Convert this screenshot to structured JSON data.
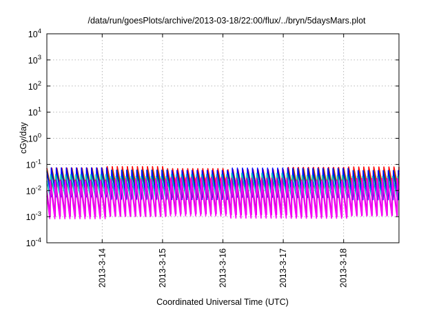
{
  "chart_data": {
    "type": "line",
    "title": "/data/run/goesPlots/archive/2013-03-18/22:00/flux/../bryn/5daysMars.plot",
    "xlabel": "Coordinated Universal Time (UTC)",
    "ylabel": "cGy/day",
    "yscale": "log",
    "ylim": [
      0.0001,
      10000
    ],
    "y_ticks": [
      {
        "value": 0.0001,
        "mant": "10",
        "exp": "-4"
      },
      {
        "value": 0.001,
        "mant": "10",
        "exp": "-3"
      },
      {
        "value": 0.01,
        "mant": "10",
        "exp": "-2"
      },
      {
        "value": 0.1,
        "mant": "10",
        "exp": "-1"
      },
      {
        "value": 1,
        "mant": "10",
        "exp": "0"
      },
      {
        "value": 10,
        "mant": "10",
        "exp": "1"
      },
      {
        "value": 100,
        "mant": "10",
        "exp": "2"
      },
      {
        "value": 1000,
        "mant": "10",
        "exp": "3"
      },
      {
        "value": 10000,
        "mant": "10",
        "exp": "4"
      }
    ],
    "xlim": [
      "2013-03-13 02:00",
      "2013-03-18 22:00"
    ],
    "x_ticks": [
      {
        "value": "2013-03-14 00:00",
        "label": "2013-3-14"
      },
      {
        "value": "2013-03-15 00:00",
        "label": "2013-3-15"
      },
      {
        "value": "2013-03-16 00:00",
        "label": "2013-3-16"
      },
      {
        "value": "2013-03-17 00:00",
        "label": "2013-3-17"
      },
      {
        "value": "2013-03-18 00:00",
        "label": "2013-3-18"
      }
    ],
    "grid": true,
    "sawtooth_period_hours": 2,
    "series": [
      {
        "color": "#ff0000",
        "peak": 0.072,
        "trough": 0.0075,
        "phase_hours": 0.0
      },
      {
        "color": "#00b000",
        "peak": 0.062,
        "trough": 0.0062,
        "phase_hours": 0.15
      },
      {
        "color": "#0000ff",
        "peak": 0.07,
        "trough": 0.0048,
        "phase_hours": 0.3
      },
      {
        "color": "#00c0c0",
        "peak": 0.04,
        "trough": 0.0045,
        "phase_hours": 0.5
      },
      {
        "color": "#c000c0",
        "peak": 0.032,
        "trough": 0.0011,
        "phase_hours": 0.65
      },
      {
        "color": "#ff00ff",
        "peak": 0.028,
        "trough": 0.0009,
        "phase_hours": 0.8
      }
    ]
  }
}
